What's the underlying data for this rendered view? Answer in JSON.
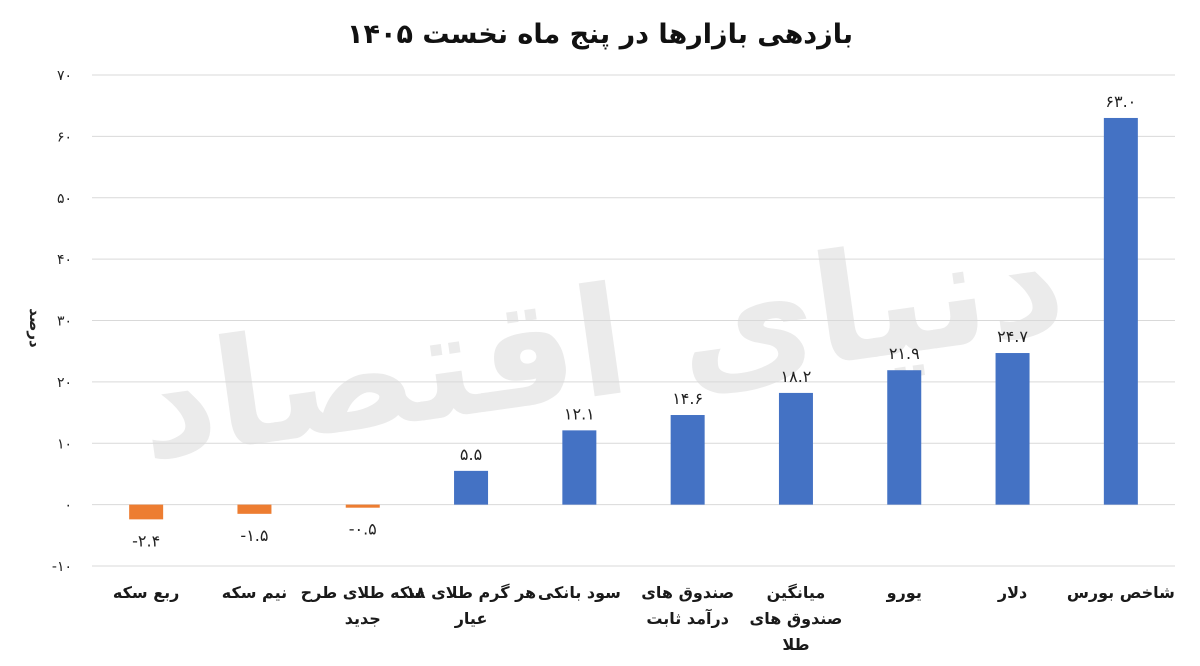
{
  "chart_data": {
    "type": "bar",
    "title": "بازدهی بازارها در پنج ماه نخست ۱۴۰۵",
    "ylabel": "درصد",
    "xlabel": "",
    "ylim": [
      -10,
      70
    ],
    "yticks": [
      -10,
      0,
      10,
      20,
      30,
      40,
      50,
      60,
      70
    ],
    "ytick_labels": [
      "-۱۰",
      "۰",
      "۱۰",
      "۲۰",
      "۳۰",
      "۴۰",
      "۵۰",
      "۶۰",
      "۷۰"
    ],
    "grid": true,
    "legend": "none",
    "categories": [
      [
        "شاخص بورس"
      ],
      [
        "دلار"
      ],
      [
        "یورو"
      ],
      [
        "میانگین",
        "صندوق های",
        "طلا"
      ],
      [
        "صندوق های",
        "درآمد ثابت"
      ],
      [
        "سود بانکی"
      ],
      [
        "هر گرم طلای ۱۸",
        "عیار"
      ],
      [
        "سکه طلای طرح",
        "جدید"
      ],
      [
        "نیم سکه"
      ],
      [
        "ربع سکه"
      ]
    ],
    "values": [
      63.0,
      24.7,
      21.9,
      18.2,
      14.6,
      12.1,
      5.5,
      -0.5,
      -1.5,
      -2.4
    ],
    "value_labels": [
      "۶۳.۰",
      "۲۴.۷",
      "۲۱.۹",
      "۱۸.۲",
      "۱۴.۶",
      "۱۲.۱",
      "۵.۵",
      "-۰.۵",
      "-۱.۵",
      "-۲.۴"
    ],
    "colors": {
      "positive": "#4472C4",
      "negative": "#ED7D31"
    },
    "watermark": "دنیای اقتصاد"
  }
}
